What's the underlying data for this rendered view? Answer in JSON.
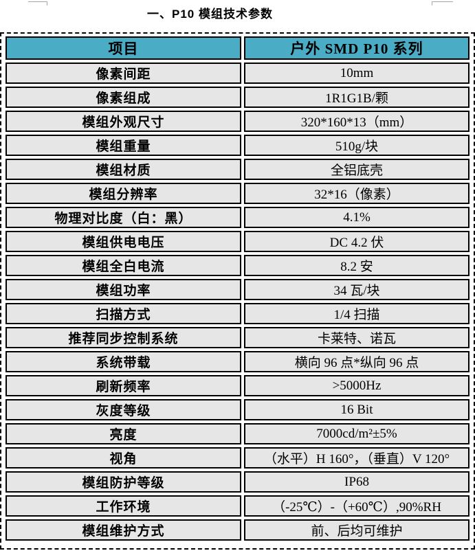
{
  "page": {
    "title": "一、P10 模组技术参数"
  },
  "table": {
    "header": {
      "col1": "项目",
      "col2": "户外 SMD P10 系列"
    },
    "rows": [
      {
        "label": "像素间距",
        "value": "10mm"
      },
      {
        "label": "像素组成",
        "value": "1R1G1B/颗"
      },
      {
        "label": "模组外观尺寸",
        "value": "320*160*13（mm）"
      },
      {
        "label": "模组重量",
        "value": "510g/块"
      },
      {
        "label": "模组材质",
        "value": "全铝底壳"
      },
      {
        "label": "模组分辨率",
        "value": "32*16（像素）"
      },
      {
        "label": "物理对比度（白：黑）",
        "value": "4.1%"
      },
      {
        "label": "模组供电电压",
        "value": "DC 4.2 伏"
      },
      {
        "label": "模组全白电流",
        "value": "8.2 安"
      },
      {
        "label": "模组功率",
        "value": "34 瓦/块"
      },
      {
        "label": "扫描方式",
        "value": "1/4 扫描"
      },
      {
        "label": "推荐同步控制系统",
        "value": "卡莱特、诺瓦"
      },
      {
        "label": "系统带载",
        "value": "横向 96 点*纵向 96 点"
      },
      {
        "label": "刷新频率",
        "value": ">5000Hz"
      },
      {
        "label": "灰度等级",
        "value": "16 Bit"
      },
      {
        "label": "亮度",
        "value": "7000cd/m²±5%"
      },
      {
        "label": "视角",
        "value": "（水平）H 160°，（垂直）V 120°"
      },
      {
        "label": "模组防护等级",
        "value": "IP68"
      },
      {
        "label": "工作环境",
        "value": "（-25℃）-（+60℃）,90%RH"
      },
      {
        "label": "模组维护方式",
        "value": "前、后均可维护"
      }
    ]
  },
  "colors": {
    "header_bg": "#4bacc6",
    "cell_bg": "#e6e6e6",
    "border": "#000000"
  }
}
